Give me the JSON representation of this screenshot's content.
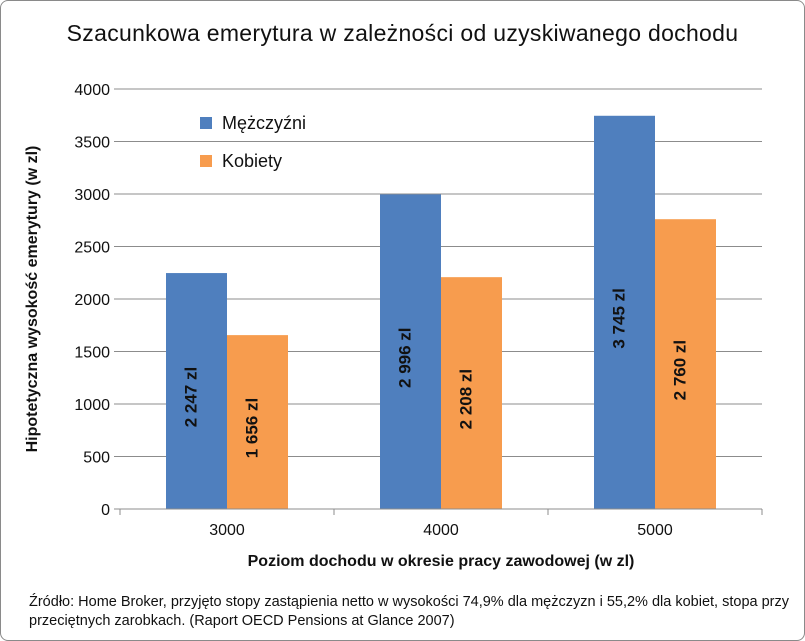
{
  "title": "Szacunkowa emerytura w zależności od uzyskiwanego dochodu",
  "source_note": "Źródło: Home Broker, przyjęto stopy zastąpienia netto w wysokości 74,9% dla mężczyzn i 55,2% dla kobiet, stopa przy przeciętnych zarobkach. (Raport OECD Pensions at Glance 2007)",
  "colors": {
    "series_men": "#4f7fbe",
    "series_women": "#f79c4e",
    "grid": "#8c8c8c"
  },
  "chart_data": {
    "type": "bar",
    "categories": [
      "3000",
      "4000",
      "5000"
    ],
    "series": [
      {
        "name": "Mężczyźni",
        "values": [
          2247,
          2996,
          3745
        ],
        "labels": [
          "2 247 zl",
          "2 996 zl",
          "3 745 zl"
        ]
      },
      {
        "name": "Kobiety",
        "values": [
          1656,
          2208,
          2760
        ],
        "labels": [
          "1 656 zl",
          "2 208 zl",
          "2 760 zl"
        ]
      }
    ],
    "xlabel": "Poziom dochodu w okresie pracy zawodowej (w zl)",
    "ylabel": "Hipotetyczna wysokość emerytury (w zl)",
    "ylim": [
      0,
      4000
    ],
    "yticks": [
      0,
      500,
      1000,
      1500,
      2000,
      2500,
      3000,
      3500,
      4000
    ],
    "grid": true,
    "legend_position": "top-left"
  }
}
